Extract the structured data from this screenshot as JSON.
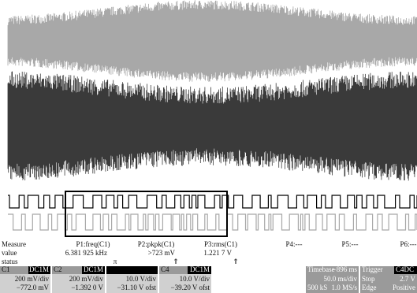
{
  "measure": {
    "labels": [
      "Measure",
      "value",
      "status"
    ],
    "params": [
      {
        "name": "P1:freq(C1)",
        "value": "6.381 925 kHz",
        "status": "π"
      },
      {
        "name": "P2:pkpk(C1)",
        "value": ">723 mV",
        "status": "⇑"
      },
      {
        "name": "P3:rms(C1)",
        "value": "1.221 7 V",
        "status": "⇑"
      },
      {
        "name": "P4:---"
      },
      {
        "name": "P5:---"
      },
      {
        "name": "P6:---"
      }
    ]
  },
  "channels": [
    {
      "label": "C1",
      "coupling": "DC1M",
      "scale": "200 mV/div",
      "offset": "−772.0 mV"
    },
    {
      "label": "C2",
      "coupling": "DC1M",
      "scale": "200 mV/div",
      "offset": "−1.392 0 V"
    },
    {
      "scale": "10.0 V/div",
      "offset": "−31.10 V ofst"
    },
    {
      "label": "C4",
      "coupling": "DC1M",
      "scale": "10.0 V/div",
      "offset": "−39.20 V ofst"
    }
  ],
  "timebase": {
    "label": "Timebase",
    "delay": "−896 ms",
    "scale": "50.0 ms/div",
    "samples": "500 kS",
    "rate": "1.0 MS/s"
  },
  "trigger": {
    "label": "Trigger",
    "source": "C4DC",
    "mode": "Stop",
    "level": "2.7 V",
    "type": "Edge",
    "slope": "Positive"
  }
}
